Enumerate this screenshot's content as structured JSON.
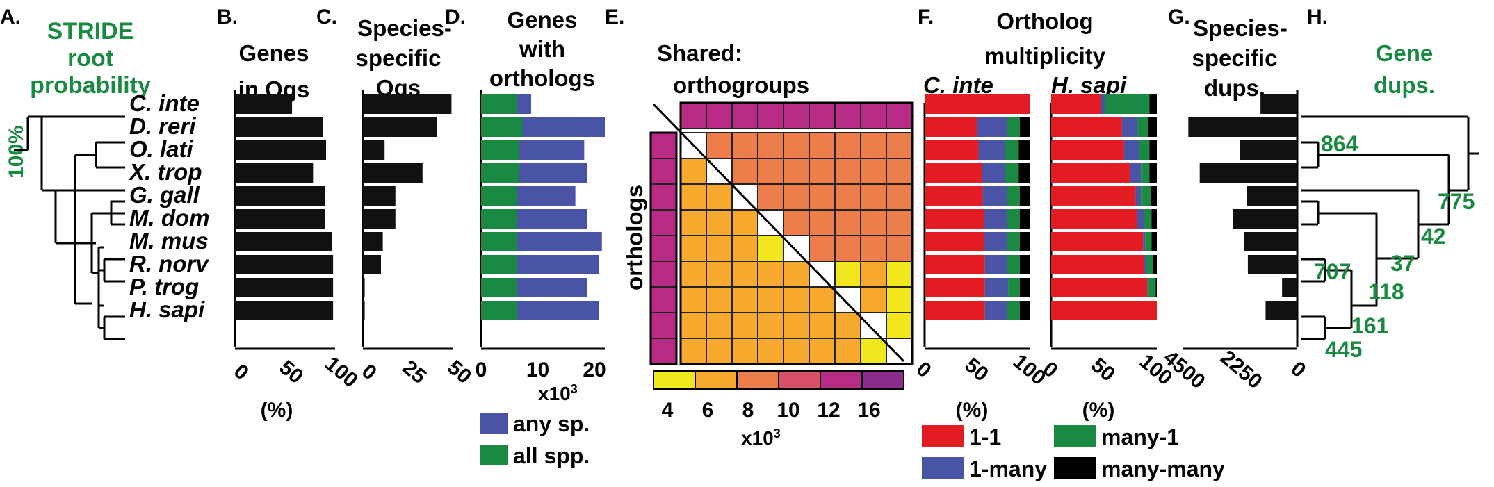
{
  "colors": {
    "bar": "#111111",
    "green": "#1a8a42",
    "blue": "#4a54a6",
    "red": "#e31b23",
    "black": "#000000",
    "heat": [
      "#f2e61c",
      "#f6a92c",
      "#ee7d4c",
      "#d9506a",
      "#b72a86",
      "#8b2c8a"
    ]
  },
  "species": [
    "C. inte",
    "D. reri",
    "O. lati",
    "X. trop",
    "G. gall",
    "M. dom",
    "M. mus",
    "R. norv",
    "P. trog",
    "H. sapi"
  ],
  "panelA": {
    "letter": "A.",
    "title": [
      "STRIDE",
      "root",
      "probability"
    ],
    "support_label": "100%"
  },
  "panelB": {
    "letter": "B.",
    "title": [
      "Genes",
      "in Ogs"
    ],
    "xlabel": "(%)",
    "ticks": [
      "0",
      "50",
      "100"
    ]
  },
  "panelC": {
    "letter": "C.",
    "title": [
      "Species-",
      "specific",
      "Ogs"
    ],
    "ticks": [
      "0",
      "25",
      "50"
    ]
  },
  "panelD": {
    "letter": "D.",
    "title": [
      "Genes",
      "with",
      "orthologs"
    ],
    "ticks": [
      "0",
      "10",
      "20"
    ],
    "multiplier": "x10",
    "multiplier_exp": "3",
    "legend": [
      {
        "label": "any sp.",
        "color": "#4a54a6"
      },
      {
        "label": "all spp.",
        "color": "#1a8a42"
      }
    ]
  },
  "panelE": {
    "letter": "E.",
    "title": [
      "Shared:",
      "orthogroups"
    ],
    "side_label": "orthologs",
    "scale_ticks": [
      "4",
      "6",
      "8",
      "10",
      "12",
      "16"
    ],
    "multiplier": "x10",
    "multiplier_exp": "3"
  },
  "panelF": {
    "letter": "F.",
    "title": [
      "Ortholog",
      "multiplicity"
    ],
    "sub_left": "C. inte",
    "sub_right": "H. sapi",
    "ticks": [
      "0",
      "50",
      "100"
    ],
    "xlabel": "(%)",
    "legend": [
      {
        "label": "1-1",
        "color": "#e31b23"
      },
      {
        "label": "1-many",
        "color": "#4a54a6"
      },
      {
        "label": "many-1",
        "color": "#1a8a42"
      },
      {
        "label": "many-many",
        "color": "#000000"
      }
    ]
  },
  "panelG": {
    "letter": "G.",
    "title": [
      "Species-",
      "specific",
      "dups."
    ],
    "ticks": [
      "4500",
      "2250",
      "0"
    ]
  },
  "panelH": {
    "letter": "H.",
    "title": [
      "Gene",
      "dups."
    ],
    "node_labels": [
      "864",
      "775",
      "42",
      "37",
      "707",
      "118",
      "161",
      "445"
    ]
  },
  "chart_data": [
    {
      "type": "bar",
      "panel": "B",
      "title": "Genes in Ogs",
      "xlabel": "(%)",
      "categories": [
        "C. inte",
        "D. reri",
        "O. lati",
        "X. trop",
        "G. gall",
        "M. dom",
        "M. mus",
        "R. norv",
        "P. trog",
        "H. sapi"
      ],
      "values": [
        57,
        88,
        91,
        78,
        90,
        90,
        97,
        98,
        98,
        98
      ],
      "xlim": [
        0,
        100
      ]
    },
    {
      "type": "bar",
      "panel": "C",
      "title": "Species-specific Ogs",
      "categories": [
        "C. inte",
        "D. reri",
        "O. lati",
        "X. trop",
        "G. gall",
        "M. dom",
        "M. mus",
        "R. norv",
        "P. trog",
        "H. sapi"
      ],
      "values": [
        49,
        41,
        12,
        33,
        18,
        18,
        11,
        10,
        1,
        1
      ],
      "xlim": [
        0,
        50
      ]
    },
    {
      "type": "bar",
      "panel": "D",
      "title": "Genes with orthologs",
      "categories": [
        "C. inte",
        "D. reri",
        "O. lati",
        "X. trop",
        "G. gall",
        "M. dom",
        "M. mus",
        "R. norv",
        "P. trog",
        "H. sapi"
      ],
      "series": [
        {
          "name": "all spp.",
          "values": [
            6.0,
            7.0,
            6.5,
            6.5,
            6.0,
            6.0,
            6.0,
            6.0,
            6.0,
            6.0
          ]
        },
        {
          "name": "any sp.",
          "values": [
            8.5,
            21.0,
            17.5,
            18.0,
            16.0,
            18.0,
            20.5,
            20.0,
            18.0,
            20.0
          ]
        }
      ],
      "xlim": [
        0,
        21
      ]
    },
    {
      "type": "heatmap",
      "panel": "E",
      "title": "Shared: orthogroups",
      "rows": [
        "C. inte",
        "D. reri",
        "O. lati",
        "X. trop",
        "G. gall",
        "M. dom",
        "M. mus",
        "R. norv",
        "P. trog",
        "H. sapi"
      ],
      "cols": [
        "C. inte",
        "D. reri",
        "O. lati",
        "X. trop",
        "G. gall",
        "M. dom",
        "M. mus",
        "R. norv",
        "P. trog",
        "H. sapi"
      ],
      "color_scale": [
        4,
        6,
        8,
        10,
        12,
        16
      ],
      "values": [
        [
          null,
          12,
          12,
          12,
          12,
          12,
          12,
          12,
          12,
          12
        ],
        [
          12,
          null,
          8,
          8,
          8,
          8,
          8,
          8,
          8,
          8
        ],
        [
          12,
          6,
          null,
          8,
          8,
          8,
          8,
          8,
          8,
          8
        ],
        [
          12,
          6,
          6,
          null,
          8,
          8,
          8,
          8,
          8,
          8
        ],
        [
          12,
          6,
          6,
          6,
          null,
          8,
          8,
          8,
          8,
          8
        ],
        [
          12,
          6,
          6,
          6,
          4,
          null,
          8,
          8,
          8,
          8
        ],
        [
          12,
          6,
          6,
          6,
          6,
          6,
          null,
          4,
          6,
          4
        ],
        [
          12,
          6,
          6,
          6,
          6,
          6,
          6,
          null,
          6,
          4
        ],
        [
          12,
          6,
          6,
          6,
          6,
          6,
          6,
          6,
          null,
          4
        ],
        [
          12,
          6,
          6,
          6,
          6,
          6,
          6,
          6,
          4,
          null
        ]
      ]
    },
    {
      "type": "bar",
      "panel": "F-left",
      "title": "C. inte",
      "xlabel": "(%)",
      "categories": [
        "C. inte",
        "D. reri",
        "O. lati",
        "X. trop",
        "G. gall",
        "M. dom",
        "M. mus",
        "R. norv",
        "P. trog",
        "H. sapi"
      ],
      "series": [
        {
          "name": "1-1",
          "values": [
            100,
            50,
            51,
            54,
            55,
            56,
            56,
            57,
            57,
            57
          ]
        },
        {
          "name": "1-many",
          "values": [
            0,
            28,
            25,
            22,
            23,
            22,
            22,
            21,
            22,
            21
          ]
        },
        {
          "name": "many-1",
          "values": [
            0,
            12,
            13,
            13,
            12,
            12,
            12,
            12,
            11,
            12
          ]
        },
        {
          "name": "many-many",
          "values": [
            0,
            10,
            11,
            11,
            10,
            10,
            10,
            10,
            10,
            10
          ]
        }
      ],
      "xlim": [
        0,
        100
      ]
    },
    {
      "type": "bar",
      "panel": "F-right",
      "title": "H. sapi",
      "xlabel": "(%)",
      "categories": [
        "C. inte",
        "D. reri",
        "O. lati",
        "X. trop",
        "G. gall",
        "M. dom",
        "M. mus",
        "R. norv",
        "P. trog",
        "H. sapi"
      ],
      "series": [
        {
          "name": "1-1",
          "values": [
            47,
            67,
            69,
            75,
            80,
            81,
            87,
            88,
            91,
            100
          ]
        },
        {
          "name": "1-many",
          "values": [
            4,
            15,
            14,
            10,
            5,
            7,
            2,
            2,
            1,
            0
          ]
        },
        {
          "name": "many-1",
          "values": [
            42,
            10,
            10,
            8,
            9,
            7,
            6,
            6,
            7,
            0
          ]
        },
        {
          "name": "many-many",
          "values": [
            7,
            8,
            7,
            7,
            6,
            5,
            5,
            4,
            1,
            0
          ]
        }
      ],
      "xlim": [
        0,
        100
      ]
    },
    {
      "type": "bar",
      "panel": "G",
      "title": "Species-specific dups.",
      "categories": [
        "C. inte",
        "D. reri",
        "O. lati",
        "X. trop",
        "G. gall",
        "M. dom",
        "M. mus",
        "R. norv",
        "P. trog",
        "H. sapi"
      ],
      "values": [
        1450,
        4300,
        2250,
        3850,
        2000,
        2550,
        2100,
        1950,
        600,
        1250
      ],
      "xlim": [
        4500,
        0
      ]
    }
  ]
}
